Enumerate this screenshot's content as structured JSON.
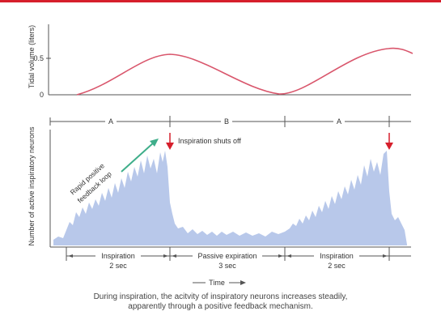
{
  "colors": {
    "accent_red": "#d61f2c",
    "volume_curve": "#d9566c",
    "neuron_fill": "#b8c8ea",
    "feedback_arrow": "#3fae8a",
    "axis": "#555555"
  },
  "top_panel": {
    "ylabel": "Tidal volume (liters)",
    "ytick_high": "0.5",
    "ytick_low": "0"
  },
  "bottom_panel": {
    "ylabel": "Number of active inspiratory neurons"
  },
  "phase_labels": {
    "a_first": "A",
    "b": "B",
    "a_second": "A"
  },
  "annotations": {
    "shutoff": "Inspiration shuts off",
    "feedback_line1": "Rapid positive",
    "feedback_line2": "feedback loop"
  },
  "phases": [
    {
      "name": "Inspiration",
      "duration": "2 sec"
    },
    {
      "name": "Passive expiration",
      "duration": "3 sec"
    },
    {
      "name": "Inspiration",
      "duration": "2 sec"
    }
  ],
  "xlabel": "Time",
  "caption": "During inspiration, the acitvity of inspiratory neurons increases steadily, apparently through a positive feedback mechanism."
}
